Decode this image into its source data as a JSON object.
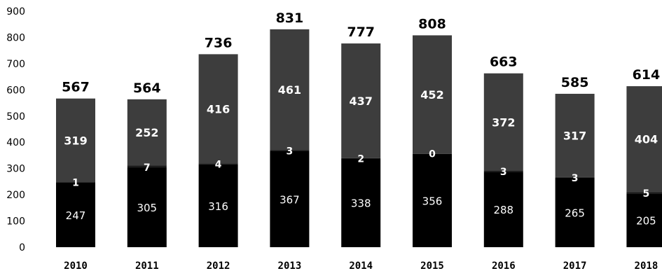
{
  "chart_data": {
    "type": "bar",
    "stacked": true,
    "categories": [
      "2010",
      "2011",
      "2012",
      "2013",
      "2014",
      "2015",
      "2016",
      "2017",
      "2018"
    ],
    "series": [
      {
        "values": [
          247,
          305,
          316,
          367,
          338,
          356,
          288,
          265,
          205
        ],
        "color": "#000000"
      },
      {
        "values": [
          1,
          7,
          4,
          3,
          2,
          0,
          3,
          3,
          5
        ],
        "color": "#111111"
      },
      {
        "values": [
          319,
          252,
          416,
          461,
          437,
          452,
          372,
          317,
          404
        ],
        "color": "#3d3d3d"
      }
    ],
    "totals": [
      567,
      564,
      736,
      831,
      777,
      808,
      663,
      585,
      614
    ],
    "ylim": [
      0,
      900
    ],
    "yticks": [
      0,
      100,
      200,
      300,
      400,
      500,
      600,
      700,
      800,
      900
    ],
    "grid": false,
    "title": "",
    "xlabel": "",
    "ylabel": ""
  }
}
